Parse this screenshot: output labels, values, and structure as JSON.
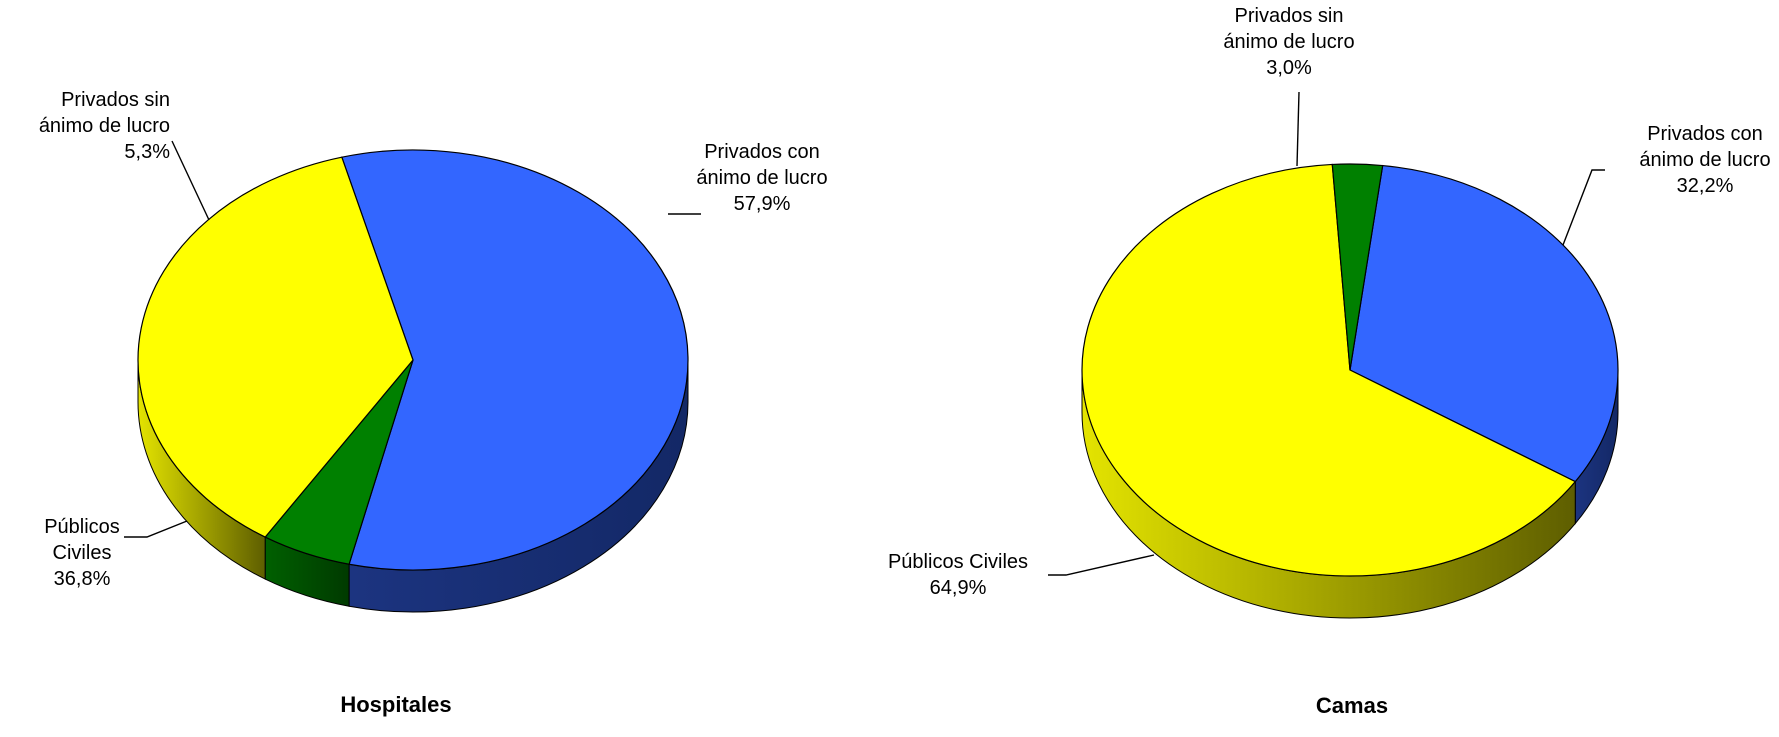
{
  "chart_data": [
    {
      "type": "pie",
      "title": "Hospitales",
      "slices": [
        {
          "lines": [
            "Privados con",
            "ánimo de lucro",
            "57,9%"
          ],
          "value": 57.9,
          "color": "#3366ff",
          "side_color": "#14286a"
        },
        {
          "lines": [
            "Privados sin",
            "ánimo de lucro",
            "5,3%"
          ],
          "value": 5.3,
          "color": "#008000",
          "side_color": "#004000"
        },
        {
          "lines": [
            "Públicos",
            "Civiles",
            "36,8%"
          ],
          "value": 36.8,
          "color": "#ffff00",
          "side_color": "#a6a600"
        }
      ]
    },
    {
      "type": "pie",
      "title": "Camas",
      "slices": [
        {
          "lines": [
            "Privados con",
            "ánimo de lucro",
            "32,2%"
          ],
          "value": 32.2,
          "color": "#3366ff",
          "side_color": "#14286a"
        },
        {
          "lines": [
            "Públicos Civiles",
            "64,9%"
          ],
          "value": 64.9,
          "color": "#ffff00",
          "side_color": "#a6a600"
        },
        {
          "lines": [
            "Privados sin",
            "ánimo de lucro",
            "3,0%"
          ],
          "value": 3.0,
          "color": "#008000",
          "side_color": "#004000"
        }
      ]
    }
  ]
}
